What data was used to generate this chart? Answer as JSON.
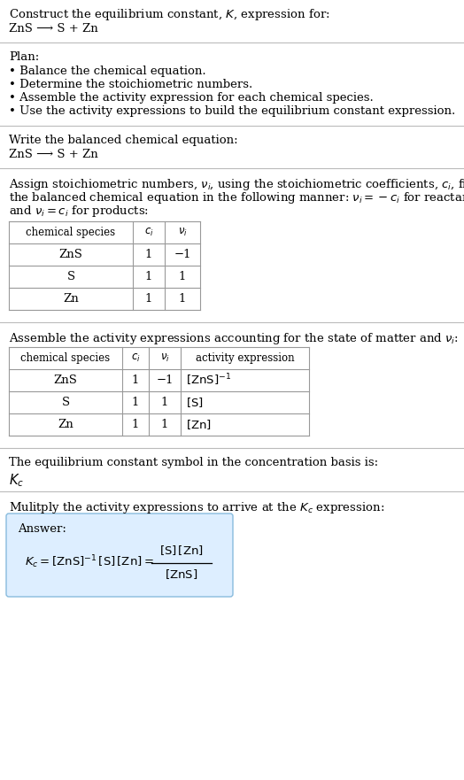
{
  "title_line1": "Construct the equilibrium constant, $K$, expression for:",
  "title_line2": "ZnS ⟶ S + Zn",
  "bg_color": "#ffffff",
  "plan_header": "Plan:",
  "plan_bullets": [
    "• Balance the chemical equation.",
    "• Determine the stoichiometric numbers.",
    "• Assemble the activity expression for each chemical species.",
    "• Use the activity expressions to build the equilibrium constant expression."
  ],
  "balanced_header": "Write the balanced chemical equation:",
  "balanced_eq": "ZnS ⟶ S + Zn",
  "stoich_intro_parts": [
    "Assign stoichiometric numbers, $\\nu_i$, using the stoichiometric coefficients, $c_i$, from",
    "the balanced chemical equation in the following manner: $\\nu_i = -c_i$ for reactants",
    "and $\\nu_i = c_i$ for products:"
  ],
  "table1_headers": [
    "chemical species",
    "$c_i$",
    "$\\nu_i$"
  ],
  "table1_rows": [
    [
      "ZnS",
      "1",
      "−1"
    ],
    [
      "S",
      "1",
      "1"
    ],
    [
      "Zn",
      "1",
      "1"
    ]
  ],
  "activity_intro": "Assemble the activity expressions accounting for the state of matter and $\\nu_i$:",
  "table2_headers": [
    "chemical species",
    "$c_i$",
    "$\\nu_i$",
    "activity expression"
  ],
  "table2_rows": [
    [
      "ZnS",
      "1",
      "−1",
      "$[\\mathrm{ZnS}]^{-1}$"
    ],
    [
      "S",
      "1",
      "1",
      "$[\\mathrm{S}]$"
    ],
    [
      "Zn",
      "1",
      "1",
      "$[\\mathrm{Zn}]$"
    ]
  ],
  "kc_intro": "The equilibrium constant symbol in the concentration basis is:",
  "kc_symbol": "$K_c$",
  "multiply_intro": "Mulitply the activity expressions to arrive at the $K_c$ expression:",
  "answer_label": "Answer:",
  "answer_box_color": "#ddeeff",
  "answer_border_color": "#88bbdd",
  "divider_color": "#bbbbbb",
  "table_border_color": "#999999",
  "text_color": "#000000",
  "font_size": 9.5,
  "font_size_hdr": 8.5
}
